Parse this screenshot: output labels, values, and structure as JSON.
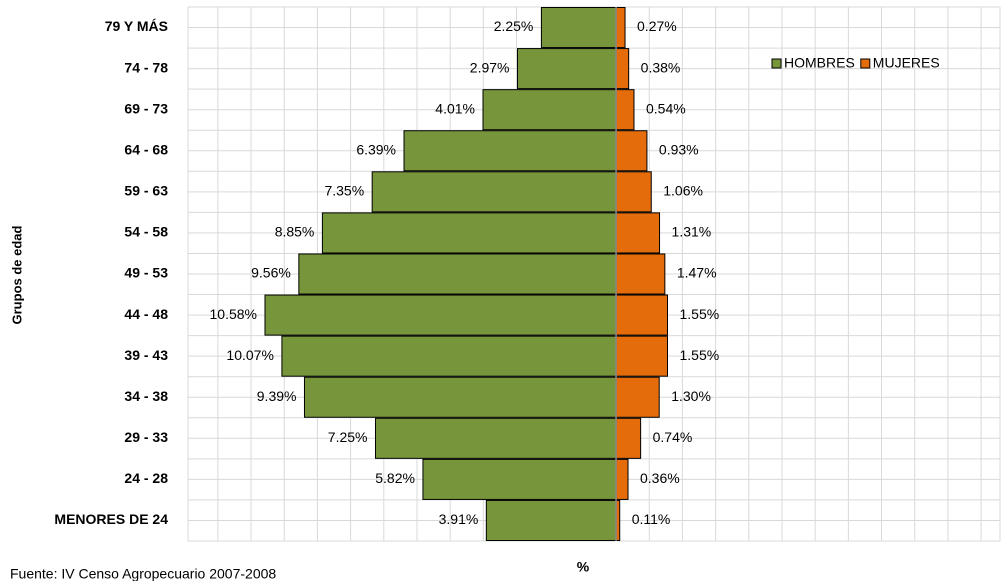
{
  "chart_data": {
    "type": "pyramid",
    "y_axis_label": "Grupos de edad",
    "x_axis_label": "%",
    "source": "Fuente: IV Censo Agropecuario 2007-2008",
    "categories": [
      "79 Y MÁS",
      "74 - 78",
      "69 - 73",
      "64 - 68",
      "59 - 63",
      "54 - 58",
      "49 - 53",
      "44 - 48",
      "39 - 43",
      "34 - 38",
      "29 - 33",
      "24 - 28",
      "MENORES DE 24"
    ],
    "series": [
      {
        "name": "HOMBRES",
        "color": "#77963c",
        "side": "left",
        "values": [
          2.25,
          2.97,
          4.01,
          6.39,
          7.35,
          8.85,
          9.56,
          10.58,
          10.07,
          9.39,
          7.25,
          5.82,
          3.91
        ],
        "value_labels": [
          "2.25%",
          "2.97%",
          "4.01%",
          "6.39%",
          "7.35%",
          "8.85%",
          "9.56%",
          "10.58%",
          "10.07%",
          "9.39%",
          "7.25%",
          "5.82%",
          "3.91%"
        ]
      },
      {
        "name": "MUJERES",
        "color": "#e46c0a",
        "side": "right",
        "values": [
          0.27,
          0.38,
          0.54,
          0.93,
          1.06,
          1.31,
          1.47,
          1.55,
          1.55,
          1.3,
          0.74,
          0.36,
          0.11
        ],
        "value_labels": [
          "0.27%",
          "0.38%",
          "0.54%",
          "0.93%",
          "1.06%",
          "1.31%",
          "1.47%",
          "1.55%",
          "1.55%",
          "1.30%",
          "0.74%",
          "0.36%",
          "0.11%"
        ]
      }
    ],
    "xlim": [
      -12.9,
      11.57
    ],
    "grid": true,
    "legend": "top-right"
  }
}
